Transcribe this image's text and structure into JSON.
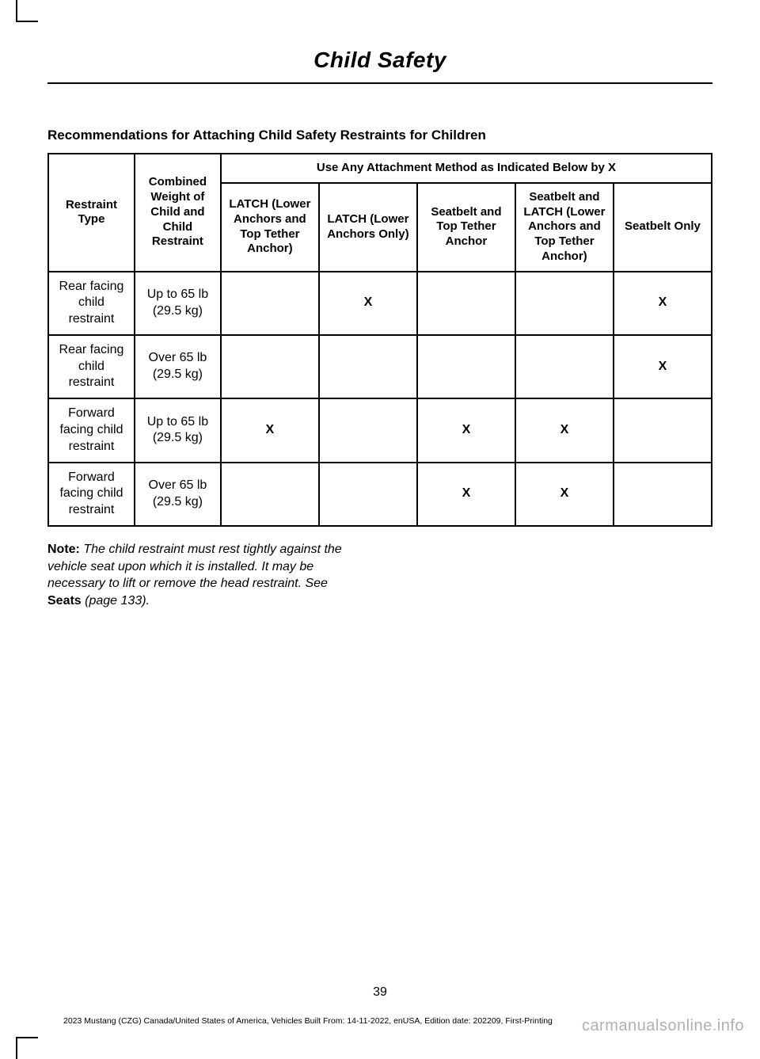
{
  "header": {
    "title": "Child Safety"
  },
  "section": {
    "title": "Recommendations for Attaching Child Safety Restraints for Children"
  },
  "table": {
    "spanning_header": "Use Any Attachment Method as Indicated Below by X",
    "col_headers": {
      "restraint_type": "Restraint Type",
      "combined_weight": "Combined Weight of Child and Child Restraint",
      "latch_full": "LATCH (Lower Anchors and Top Tether Anchor)",
      "latch_lower": "LATCH (Lower Anchors Only)",
      "seatbelt_tether": "Seatbelt and Top Tether Anchor",
      "seatbelt_latch": "Seatbelt and LATCH (Lower Anchors and Top Tether Anchor)",
      "seatbelt_only": "Seatbelt Only"
    },
    "rows": [
      {
        "restraint": "Rear facing child restraint",
        "weight": "Up to 65 lb (29.5 kg)",
        "latch_full": "",
        "latch_lower": "X",
        "seatbelt_tether": "",
        "seatbelt_latch": "",
        "seatbelt_only": "X"
      },
      {
        "restraint": "Rear facing child restraint",
        "weight": "Over 65 lb (29.5 kg)",
        "latch_full": "",
        "latch_lower": "",
        "seatbelt_tether": "",
        "seatbelt_latch": "",
        "seatbelt_only": "X"
      },
      {
        "restraint": "Forward facing child restraint",
        "weight": "Up to 65 lb (29.5 kg)",
        "latch_full": "X",
        "latch_lower": "",
        "seatbelt_tether": "X",
        "seatbelt_latch": "X",
        "seatbelt_only": ""
      },
      {
        "restraint": "Forward facing child restraint",
        "weight": "Over 65 lb (29.5 kg)",
        "latch_full": "",
        "latch_lower": "",
        "seatbelt_tether": "X",
        "seatbelt_latch": "X",
        "seatbelt_only": ""
      }
    ]
  },
  "note": {
    "label": "Note:",
    "text_before": " The child restraint must rest tightly against the vehicle seat upon which it is installed. It may be necessary to lift or remove the head restraint.  See ",
    "seats_ref": "Seats",
    "text_after": " (page 133)."
  },
  "page_number": "39",
  "footer": "2023 Mustang (CZG) Canada/United States of America, Vehicles Built From: 14-11-2022, enUSA, Edition date: 202209, First-Printing",
  "watermark": "carmanualsonline.info"
}
